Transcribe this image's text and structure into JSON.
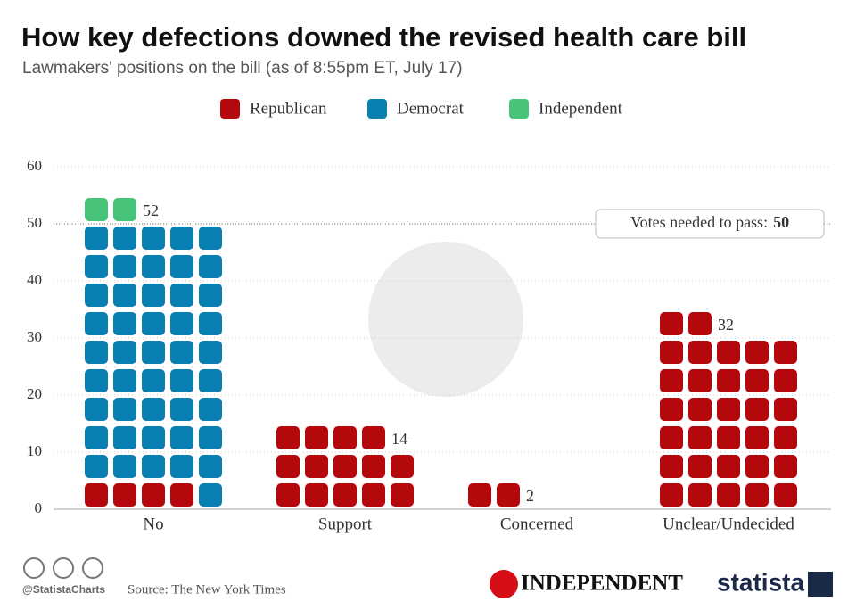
{
  "chart_data": {
    "type": "waffle",
    "title": "How key defections downed the revised health care bill",
    "subtitle": "Lawmakers' positions on the bill (as of 8:55pm ET, July 17)",
    "categories": [
      "No",
      "Support",
      "Concerned",
      "Unclear/Undecided"
    ],
    "series": [
      {
        "name": "Republican",
        "color": "#b5080c",
        "values": [
          4,
          14,
          2,
          32
        ]
      },
      {
        "name": "Democrat",
        "color": "#0a80b2",
        "values": [
          46,
          0,
          0,
          0
        ]
      },
      {
        "name": "Independent",
        "color": "#48c47a",
        "values": [
          2,
          0,
          0,
          0
        ]
      }
    ],
    "totals": [
      52,
      14,
      2,
      32
    ],
    "ylim": [
      0,
      60
    ],
    "yticks": [
      0,
      10,
      20,
      30,
      40,
      50,
      60
    ],
    "grid": true,
    "units_per_row": 5,
    "annotation": {
      "text": "Votes needed to pass:",
      "value": 50
    },
    "legend": "top",
    "footer": {
      "handle": "@StatistaCharts",
      "source": "Source: The New York Times",
      "partner": "INDEPENDENT",
      "brand": "statista"
    }
  }
}
